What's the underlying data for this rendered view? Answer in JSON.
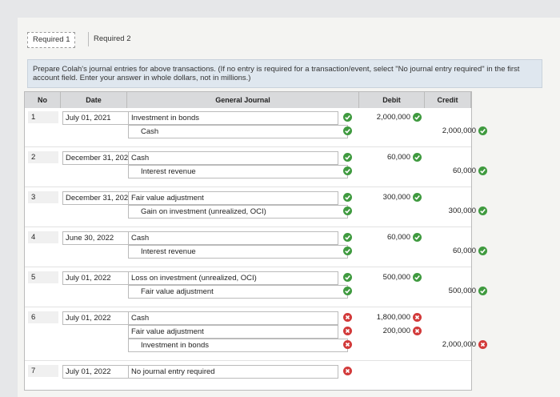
{
  "tabs": [
    "Required 1",
    "Required 2"
  ],
  "instructions": "Prepare Colah's journal entries for above transactions. (If no entry is required for a transaction/event, select \"No journal entry required\" in the first account field. Enter your answer in whole dollars, not in millions.)",
  "table": {
    "headers": [
      "No",
      "Date",
      "General Journal",
      "Debit",
      "Credit"
    ],
    "entries": [
      {
        "no": "1",
        "date": "July 01, 2021",
        "lines": [
          {
            "account": "Investment in bonds",
            "side": "debit",
            "amount": "2,000,000",
            "status": "correct"
          },
          {
            "account": "Cash",
            "side": "credit",
            "amount": "2,000,000",
            "status": "correct"
          }
        ]
      },
      {
        "no": "2",
        "date": "December 31, 202",
        "lines": [
          {
            "account": "Cash",
            "side": "debit",
            "amount": "60,000",
            "status": "correct"
          },
          {
            "account": "Interest revenue",
            "side": "credit",
            "amount": "60,000",
            "status": "correct"
          }
        ]
      },
      {
        "no": "3",
        "date": "December 31, 202",
        "lines": [
          {
            "account": "Fair value adjustment",
            "side": "debit",
            "amount": "300,000",
            "status": "correct"
          },
          {
            "account": "Gain on investment (unrealized, OCI)",
            "side": "credit",
            "amount": "300,000",
            "status": "correct"
          }
        ]
      },
      {
        "no": "4",
        "date": "June 30, 2022",
        "lines": [
          {
            "account": "Cash",
            "side": "debit",
            "amount": "60,000",
            "status": "correct"
          },
          {
            "account": "Interest revenue",
            "side": "credit",
            "amount": "60,000",
            "status": "correct"
          }
        ]
      },
      {
        "no": "5",
        "date": "July 01, 2022",
        "lines": [
          {
            "account": "Loss on investment (unrealized, OCI)",
            "side": "debit",
            "amount": "500,000",
            "status": "correct"
          },
          {
            "account": "Fair value adjustment",
            "side": "credit",
            "amount": "500,000",
            "status": "correct"
          }
        ]
      },
      {
        "no": "6",
        "date": "July 01, 2022",
        "lines": [
          {
            "account": "Cash",
            "side": "debit",
            "amount": "1,800,000",
            "status": "incorrect"
          },
          {
            "account": "Fair value adjustment",
            "side": "debit",
            "amount": "200,000",
            "status": "incorrect"
          },
          {
            "account": "Investment in bonds",
            "side": "credit",
            "amount": "2,000,000",
            "status": "incorrect"
          }
        ]
      },
      {
        "no": "7",
        "date": "July 01, 2022",
        "lines": [
          {
            "account": "No journal entry required",
            "side": "debit",
            "status": "incorrect"
          }
        ]
      }
    ]
  }
}
